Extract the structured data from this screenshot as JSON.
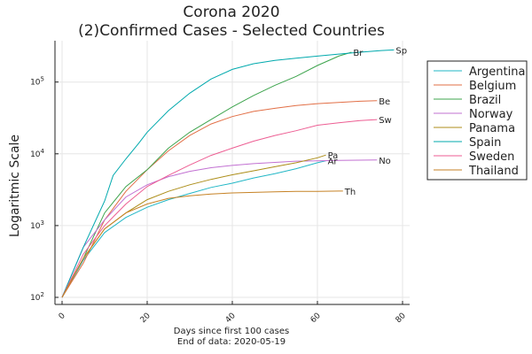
{
  "chart_data": {
    "type": "line",
    "title_line1": "Corona 2020",
    "title_line2": "(2)Confirmed Cases - Selected Countries",
    "ylabel": "Logaritmic Scale",
    "xlabel_line1": "Days since first 100 cases",
    "xlabel_line2": "End of data: 2020-05-19",
    "y_scale": "log10",
    "xlim": [
      0,
      80
    ],
    "ylim": [
      100,
      300000
    ],
    "x_ticks": [
      "0",
      "20",
      "40",
      "60",
      "80"
    ],
    "y_ticks": [
      {
        "value": 100,
        "base": "10",
        "exp": "2"
      },
      {
        "value": 1000,
        "base": "10",
        "exp": "3"
      },
      {
        "value": 10000,
        "base": "10",
        "exp": "4"
      },
      {
        "value": 100000,
        "base": "10",
        "exp": "5"
      }
    ],
    "grid": true,
    "legend_position": "right",
    "series": [
      {
        "name": "Argentina",
        "end_label": "Ar",
        "color": "#22b7c6",
        "points": [
          [
            0,
            100
          ],
          [
            5,
            330
          ],
          [
            10,
            800
          ],
          [
            15,
            1300
          ],
          [
            20,
            1800
          ],
          [
            25,
            2300
          ],
          [
            30,
            2800
          ],
          [
            35,
            3400
          ],
          [
            40,
            3900
          ],
          [
            45,
            4600
          ],
          [
            50,
            5300
          ],
          [
            55,
            6200
          ],
          [
            60,
            7500
          ],
          [
            62,
            8000
          ]
        ]
      },
      {
        "name": "Belgium",
        "end_label": "Be",
        "color": "#e26f46",
        "points": [
          [
            0,
            100
          ],
          [
            5,
            300
          ],
          [
            10,
            1200
          ],
          [
            15,
            3000
          ],
          [
            20,
            6000
          ],
          [
            25,
            11000
          ],
          [
            30,
            18000
          ],
          [
            35,
            26000
          ],
          [
            40,
            33000
          ],
          [
            45,
            39000
          ],
          [
            50,
            43000
          ],
          [
            55,
            47000
          ],
          [
            60,
            50000
          ],
          [
            65,
            52000
          ],
          [
            70,
            54000
          ],
          [
            74,
            55000
          ]
        ]
      },
      {
        "name": "Brazil",
        "end_label": "Br",
        "color": "#3da44d",
        "points": [
          [
            0,
            100
          ],
          [
            5,
            350
          ],
          [
            10,
            1500
          ],
          [
            15,
            3500
          ],
          [
            20,
            6000
          ],
          [
            25,
            12000
          ],
          [
            30,
            20000
          ],
          [
            35,
            30000
          ],
          [
            40,
            45000
          ],
          [
            45,
            65000
          ],
          [
            50,
            90000
          ],
          [
            55,
            120000
          ],
          [
            60,
            170000
          ],
          [
            65,
            230000
          ],
          [
            68,
            260000
          ]
        ]
      },
      {
        "name": "Norway",
        "end_label": "No",
        "color": "#c271d2",
        "points": [
          [
            0,
            100
          ],
          [
            5,
            500
          ],
          [
            10,
            1200
          ],
          [
            15,
            2500
          ],
          [
            20,
            3700
          ],
          [
            25,
            4800
          ],
          [
            30,
            5700
          ],
          [
            35,
            6400
          ],
          [
            40,
            6900
          ],
          [
            45,
            7300
          ],
          [
            50,
            7600
          ],
          [
            55,
            7900
          ],
          [
            60,
            8000
          ],
          [
            65,
            8100
          ],
          [
            74,
            8200
          ]
        ]
      },
      {
        "name": "Panama",
        "end_label": "Pa",
        "color": "#ac8d18",
        "points": [
          [
            0,
            100
          ],
          [
            5,
            350
          ],
          [
            10,
            900
          ],
          [
            15,
            1500
          ],
          [
            20,
            2300
          ],
          [
            25,
            3000
          ],
          [
            30,
            3700
          ],
          [
            35,
            4400
          ],
          [
            40,
            5100
          ],
          [
            45,
            5800
          ],
          [
            50,
            6600
          ],
          [
            55,
            7500
          ],
          [
            60,
            8800
          ],
          [
            62,
            9600
          ]
        ]
      },
      {
        "name": "Spain",
        "end_label": "Sp",
        "color": "#00a9ad",
        "points": [
          [
            0,
            100
          ],
          [
            5,
            500
          ],
          [
            10,
            2200
          ],
          [
            12,
            5000
          ],
          [
            15,
            8500
          ],
          [
            18,
            14000
          ],
          [
            20,
            20000
          ],
          [
            25,
            40000
          ],
          [
            30,
            70000
          ],
          [
            35,
            110000
          ],
          [
            40,
            150000
          ],
          [
            45,
            180000
          ],
          [
            50,
            200000
          ],
          [
            55,
            215000
          ],
          [
            60,
            230000
          ],
          [
            65,
            245000
          ],
          [
            70,
            260000
          ],
          [
            75,
            275000
          ],
          [
            78,
            280000
          ]
        ]
      },
      {
        "name": "Sweden",
        "end_label": "Sw",
        "color": "#ed5e93",
        "points": [
          [
            0,
            100
          ],
          [
            5,
            400
          ],
          [
            10,
            1000
          ],
          [
            15,
            2000
          ],
          [
            20,
            3500
          ],
          [
            25,
            5000
          ],
          [
            30,
            7000
          ],
          [
            35,
            9500
          ],
          [
            40,
            12000
          ],
          [
            45,
            15000
          ],
          [
            50,
            18000
          ],
          [
            55,
            21000
          ],
          [
            60,
            25000
          ],
          [
            65,
            27000
          ],
          [
            70,
            29000
          ],
          [
            74,
            30000
          ]
        ]
      },
      {
        "name": "Thailand",
        "end_label": "Th",
        "color": "#c68225",
        "points": [
          [
            0,
            100
          ],
          [
            5,
            350
          ],
          [
            10,
            900
          ],
          [
            15,
            1500
          ],
          [
            20,
            2000
          ],
          [
            25,
            2400
          ],
          [
            30,
            2600
          ],
          [
            35,
            2750
          ],
          [
            40,
            2850
          ],
          [
            45,
            2900
          ],
          [
            50,
            2950
          ],
          [
            55,
            3000
          ],
          [
            60,
            3000
          ],
          [
            65,
            3030
          ],
          [
            66,
            3030
          ]
        ]
      }
    ]
  }
}
